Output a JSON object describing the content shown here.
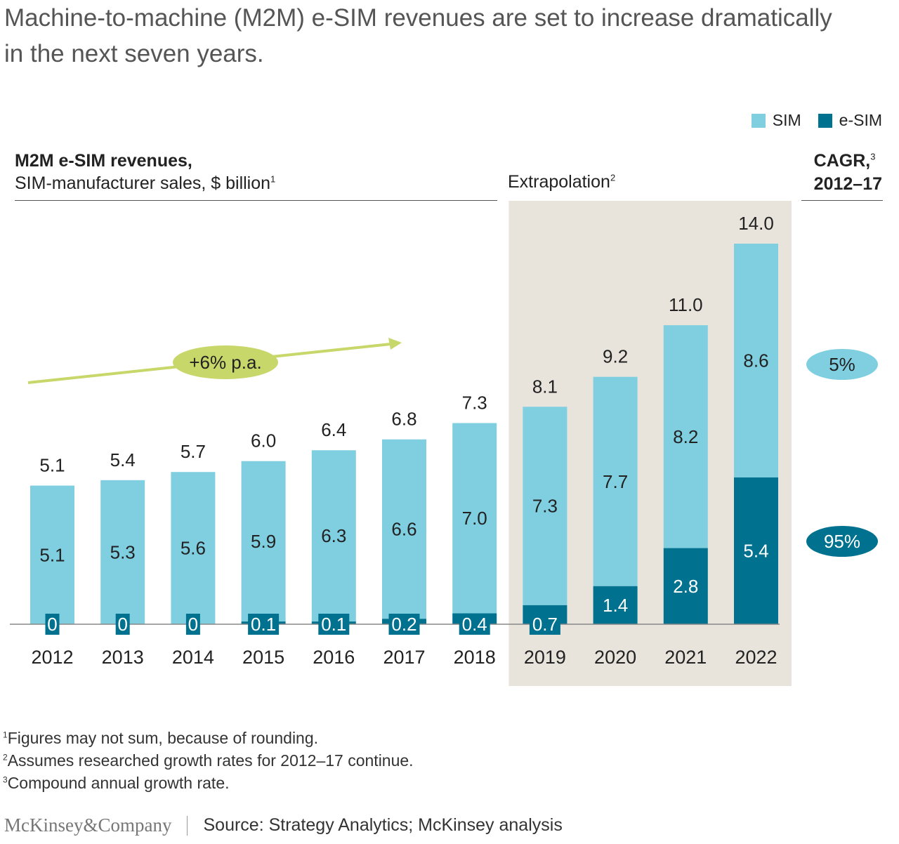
{
  "headline": "Machine-to-machine (M2M) e-SIM revenues are set to increase dramatically in the next seven years.",
  "legend": [
    {
      "label": "SIM",
      "color": "#7FCFE1"
    },
    {
      "label": "e-SIM",
      "color": "#00728F"
    }
  ],
  "chart_heading": {
    "title": "M2M e-SIM revenues,",
    "subtitle": "SIM-manufacturer sales, $ billion",
    "subtitle_note": "1"
  },
  "extrapolation": {
    "label": "Extrapolation",
    "note": "2"
  },
  "cagr": {
    "label": "CAGR,",
    "note": "3",
    "period": "2012–17",
    "sim": "5%",
    "esim": "95%"
  },
  "trend_label": "+6% p.a.",
  "chart_data": {
    "type": "bar",
    "stacked": true,
    "categories": [
      "2012",
      "2013",
      "2014",
      "2015",
      "2016",
      "2017",
      "2018",
      "2019",
      "2020",
      "2021",
      "2022"
    ],
    "series": [
      {
        "name": "SIM",
        "color": "#7FCFE1",
        "values": [
          5.1,
          5.3,
          5.6,
          5.9,
          6.3,
          6.6,
          7.0,
          7.3,
          7.7,
          8.2,
          8.6
        ],
        "labels": [
          "5.1",
          "5.3",
          "5.6",
          "5.9",
          "6.3",
          "6.6",
          "7.0",
          "7.3",
          "7.7",
          "8.2",
          "8.6"
        ]
      },
      {
        "name": "e-SIM",
        "color": "#00728F",
        "values": [
          0,
          0,
          0,
          0.1,
          0.1,
          0.2,
          0.4,
          0.7,
          1.4,
          2.8,
          5.4
        ],
        "labels": [
          "0",
          "0",
          "0",
          "0.1",
          "0.1",
          "0.2",
          "0.4",
          "0.7",
          "1.4",
          "2.8",
          "5.4"
        ]
      }
    ],
    "totals": [
      "5.1",
      "5.4",
      "5.7",
      "6.0",
      "6.4",
      "6.8",
      "7.3",
      "8.1",
      "9.2",
      "11.0",
      "14.0"
    ],
    "extrapolated_from": "2019",
    "ylim": [
      0,
      14.5
    ],
    "colors": {
      "sim": "#7FCFE1",
      "esim": "#00728F",
      "trend": "#C8D76A",
      "extrapolation_band": "#E8E4DC"
    }
  },
  "footnotes": [
    {
      "mark": "1",
      "text": "Figures may not sum, because of rounding."
    },
    {
      "mark": "2",
      "text": "Assumes researched growth rates for 2012–17 continue."
    },
    {
      "mark": "3",
      "text": "Compound annual growth rate."
    }
  ],
  "footer": {
    "brand": "McKinsey&Company",
    "source": "Source: Strategy Analytics; McKinsey analysis"
  }
}
